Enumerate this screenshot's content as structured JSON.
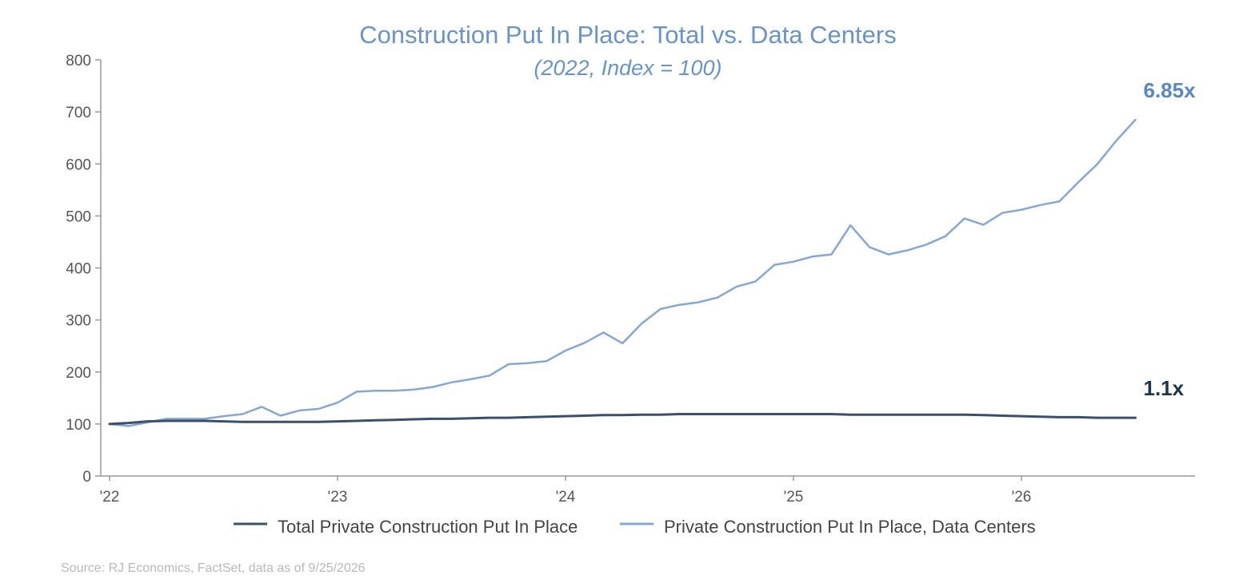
{
  "chart_data": {
    "type": "line",
    "title": "Construction Put In Place: Total vs. Data Centers",
    "subtitle": "(2022, Index = 100)",
    "xlabel": "",
    "ylabel": "",
    "ylim": [
      0,
      800
    ],
    "yticks": [
      "0",
      "100",
      "200",
      "300",
      "400",
      "500",
      "600",
      "700",
      "800"
    ],
    "xticks": [
      {
        "label": "'22",
        "value": "2022-01"
      },
      {
        "label": "'23",
        "value": "2023-01"
      },
      {
        "label": "'24",
        "value": "2024-01"
      },
      {
        "label": "'25",
        "value": "2025-01"
      },
      {
        "label": "'26",
        "value": "2026-01"
      }
    ],
    "grid": false,
    "legend_position": "bottom",
    "x": [
      "2022-01",
      "2022-02",
      "2022-03",
      "2022-04",
      "2022-05",
      "2022-06",
      "2022-07",
      "2022-08",
      "2022-09",
      "2022-10",
      "2022-11",
      "2022-12",
      "2023-01",
      "2023-02",
      "2023-03",
      "2023-04",
      "2023-05",
      "2023-06",
      "2023-07",
      "2023-08",
      "2023-09",
      "2023-10",
      "2023-11",
      "2023-12",
      "2024-01",
      "2024-02",
      "2024-03",
      "2024-04",
      "2024-05",
      "2024-06",
      "2024-07",
      "2024-08",
      "2024-09",
      "2024-10",
      "2024-11",
      "2024-12",
      "2025-01",
      "2025-02",
      "2025-03",
      "2025-04",
      "2025-05",
      "2025-06",
      "2025-07",
      "2025-08",
      "2025-09",
      "2025-10",
      "2025-11",
      "2025-12",
      "2026-01",
      "2026-02",
      "2026-03",
      "2026-04",
      "2026-05",
      "2026-06",
      "2026-07"
    ],
    "series": [
      {
        "name": "Total Private Construction Put In Place",
        "color": "#3b4f6b",
        "end_label": "1.1x",
        "end_label_color": "#1f3350",
        "values": [
          100,
          102,
          105,
          106,
          106,
          106,
          105,
          104,
          104,
          104,
          104,
          104,
          105,
          106,
          107,
          108,
          109,
          110,
          110,
          111,
          112,
          112,
          113,
          114,
          115,
          116,
          117,
          117,
          118,
          118,
          119,
          119,
          119,
          119,
          119,
          119,
          119,
          119,
          119,
          118,
          118,
          118,
          118,
          118,
          118,
          118,
          117,
          116,
          115,
          114,
          113,
          113,
          112,
          112,
          112
        ]
      },
      {
        "name": "Private Construction Put In Place, Data Centers",
        "color": "#86a7d2",
        "end_label": "6.85x",
        "end_label_color": "#5b87c0",
        "values": [
          100,
          96,
          103,
          110,
          110,
          110,
          115,
          119,
          133,
          116,
          126,
          129,
          141,
          162,
          164,
          164,
          166,
          171,
          180,
          186,
          193,
          215,
          217,
          221,
          241,
          256,
          276,
          255,
          293,
          321,
          329,
          334,
          343,
          364,
          374,
          406,
          412,
          422,
          426,
          482,
          440,
          426,
          434,
          445,
          461,
          495,
          483,
          506,
          512,
          521,
          528,
          565,
          600,
          645,
          685
        ]
      }
    ]
  },
  "source": "Source: RJ Economics,  FactSet, data as of 9/25/2026"
}
